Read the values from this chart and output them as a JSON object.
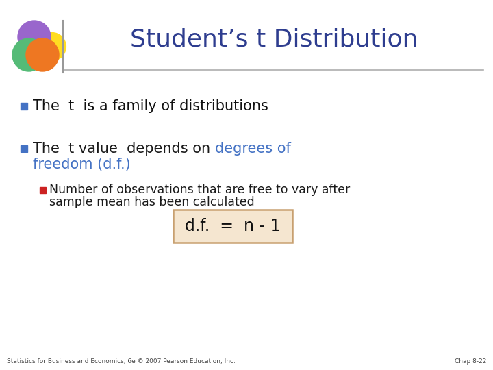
{
  "title": "Student’s t Distribution",
  "title_color": "#2E3D8F",
  "title_fontsize": 26,
  "bg_color": "#FFFFFF",
  "bullet1": "The  t  is a family of distributions",
  "bullet2_black": "The  t value  depends on ",
  "bullet2_blue": "degrees of",
  "bullet2_line2": "freedom (d.f.)",
  "bullet_sq_color": "#4472C4",
  "bullet2_black_color": "#1a1a1a",
  "bullet2_blue_color": "#4472C4",
  "sub_bullet_line1": "Number of observations that are free to vary after",
  "sub_bullet_line2": "sample mean has been calculated",
  "sub_bullet_color": "#1a1a1a",
  "sub_sq_color": "#CC2222",
  "formula": "d.f.  =  n - 1",
  "formula_bg": "#F5E6D0",
  "formula_border": "#C8A070",
  "footer_left": "Statistics for Business and Economics, 6e © 2007 Pearson Education, Inc.",
  "footer_right": "Chap 8-22",
  "line_color": "#999999",
  "logo": {
    "purple": "#9966CC",
    "green": "#55BB77",
    "orange": "#EE7722",
    "yellow": "#FFDD22"
  }
}
